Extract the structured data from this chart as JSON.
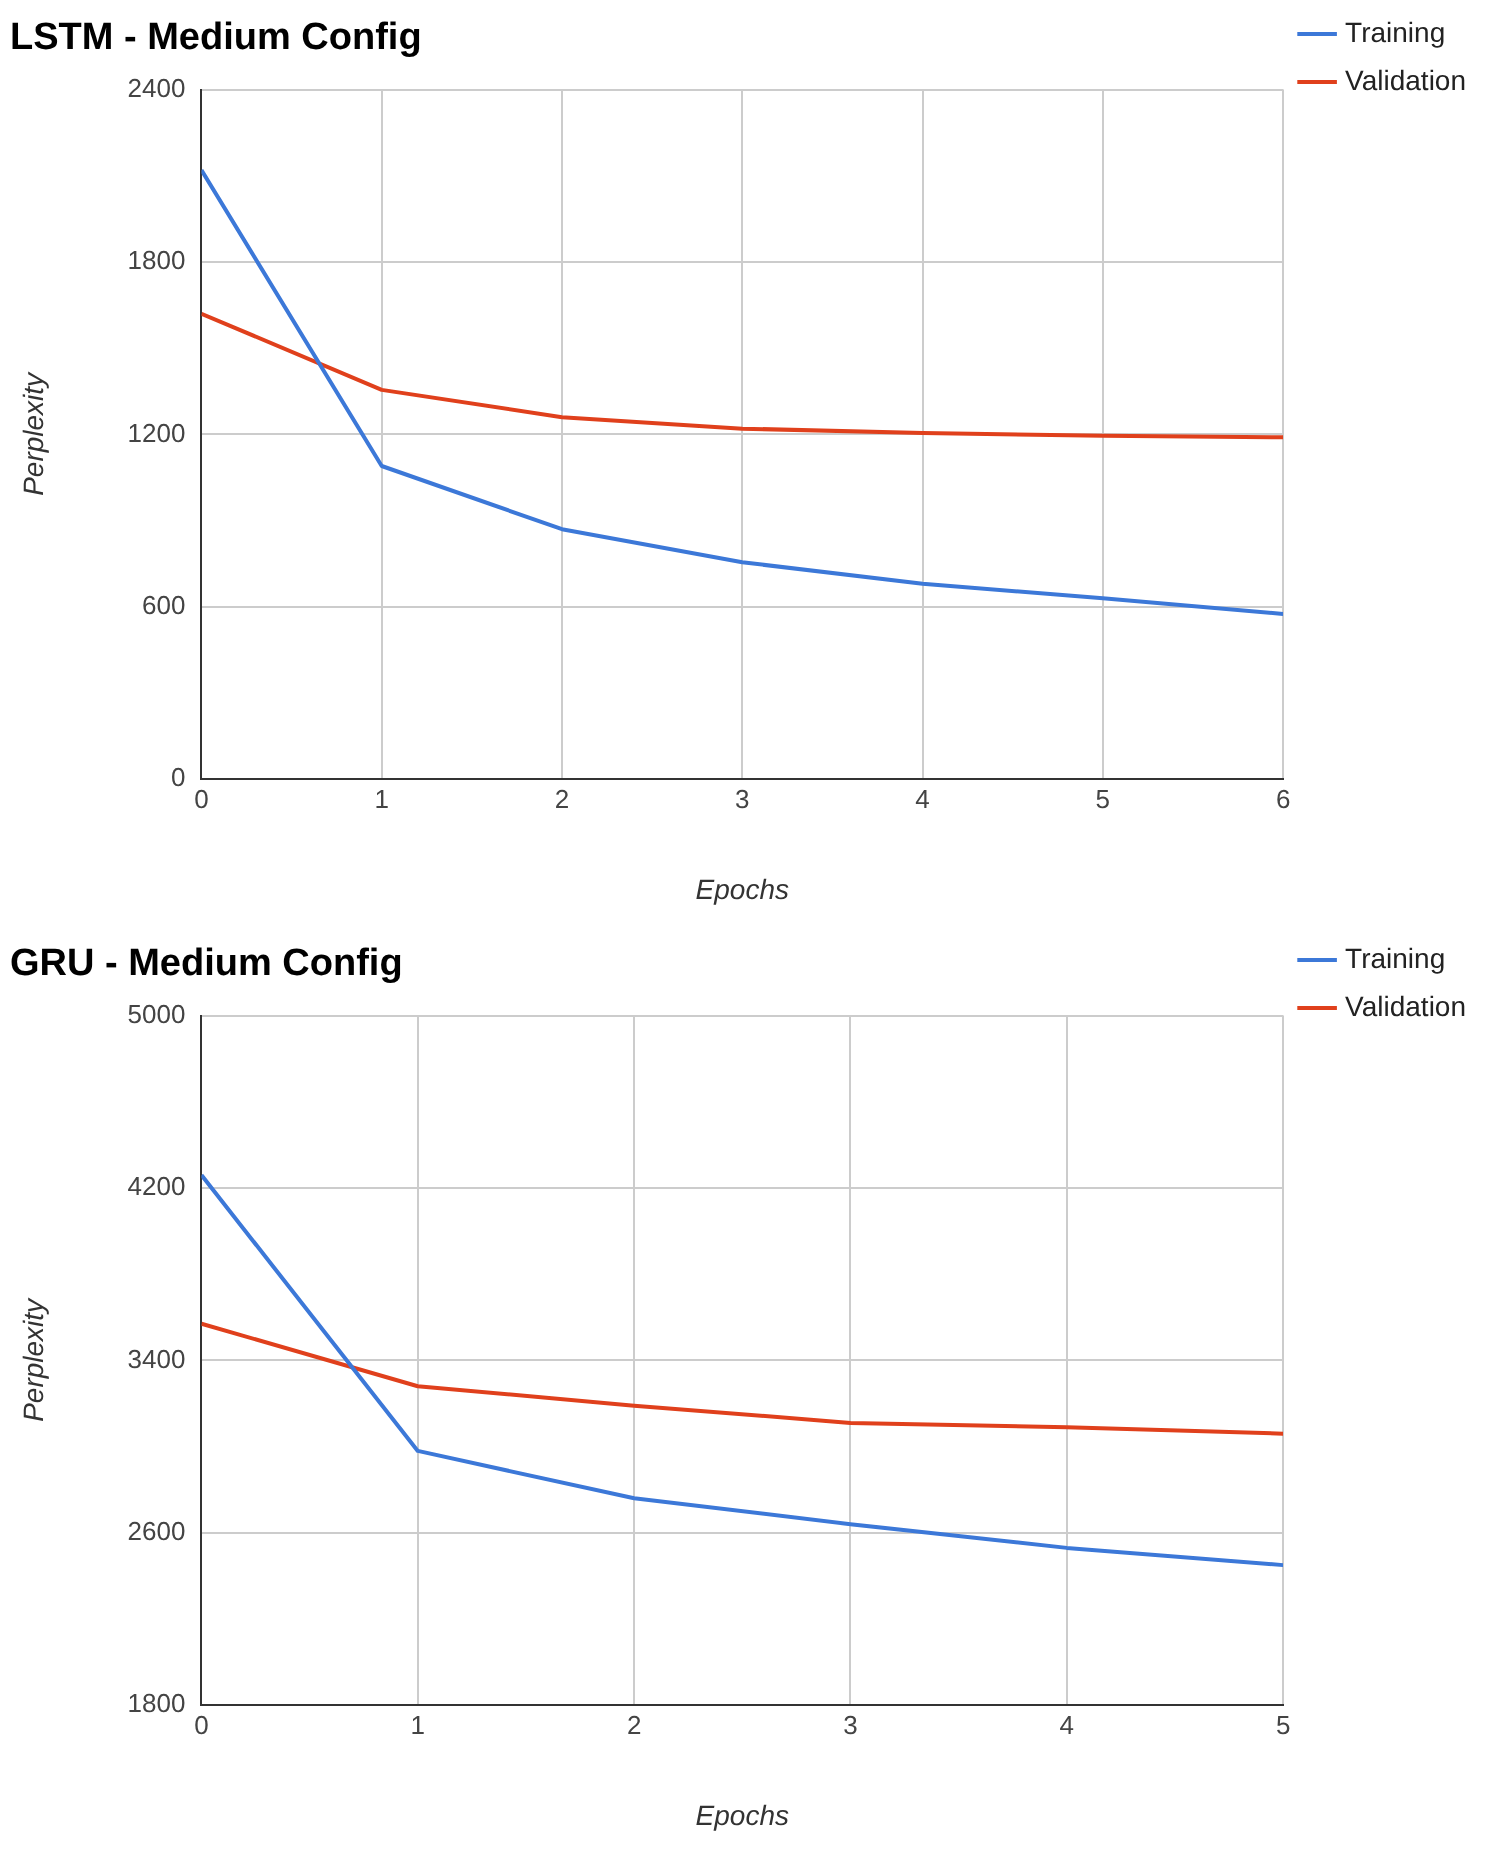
{
  "chart_data": [
    {
      "type": "line",
      "title": "LSTM - Medium Config",
      "xlabel": "Epochs",
      "ylabel": "Perplexity",
      "x": [
        0,
        1,
        2,
        3,
        4,
        5,
        6
      ],
      "xlim": [
        0,
        6
      ],
      "xticks": [
        0,
        1,
        2,
        3,
        4,
        5,
        6
      ],
      "ylim": [
        0,
        2400
      ],
      "yticks": [
        0,
        600,
        1200,
        1800,
        2400
      ],
      "grid": true,
      "legend": "top right",
      "marker": "none",
      "series": [
        {
          "name": "Training",
          "color": "#3c78d8",
          "values": [
            2120,
            1090,
            870,
            755,
            680,
            630,
            575
          ]
        },
        {
          "name": "Validation",
          "color": "#e0401c",
          "values": [
            1620,
            1355,
            1260,
            1220,
            1205,
            1195,
            1190
          ]
        }
      ]
    },
    {
      "type": "line",
      "title": "GRU - Medium Config",
      "xlabel": "Epochs",
      "ylabel": "Perplexity",
      "x": [
        0,
        1,
        2,
        3,
        4,
        5
      ],
      "xlim": [
        0,
        5
      ],
      "xticks": [
        0,
        1,
        2,
        3,
        4,
        5
      ],
      "ylim": [
        1800,
        5000
      ],
      "yticks": [
        1800,
        2600,
        3400,
        4200,
        5000
      ],
      "grid": true,
      "legend": "top right",
      "marker": "none",
      "series": [
        {
          "name": "Training",
          "color": "#3c78d8",
          "values": [
            4260,
            2980,
            2760,
            2640,
            2530,
            2450
          ]
        },
        {
          "name": "Validation",
          "color": "#e0401c",
          "values": [
            3570,
            3280,
            3190,
            3110,
            3090,
            3060
          ]
        }
      ]
    }
  ]
}
